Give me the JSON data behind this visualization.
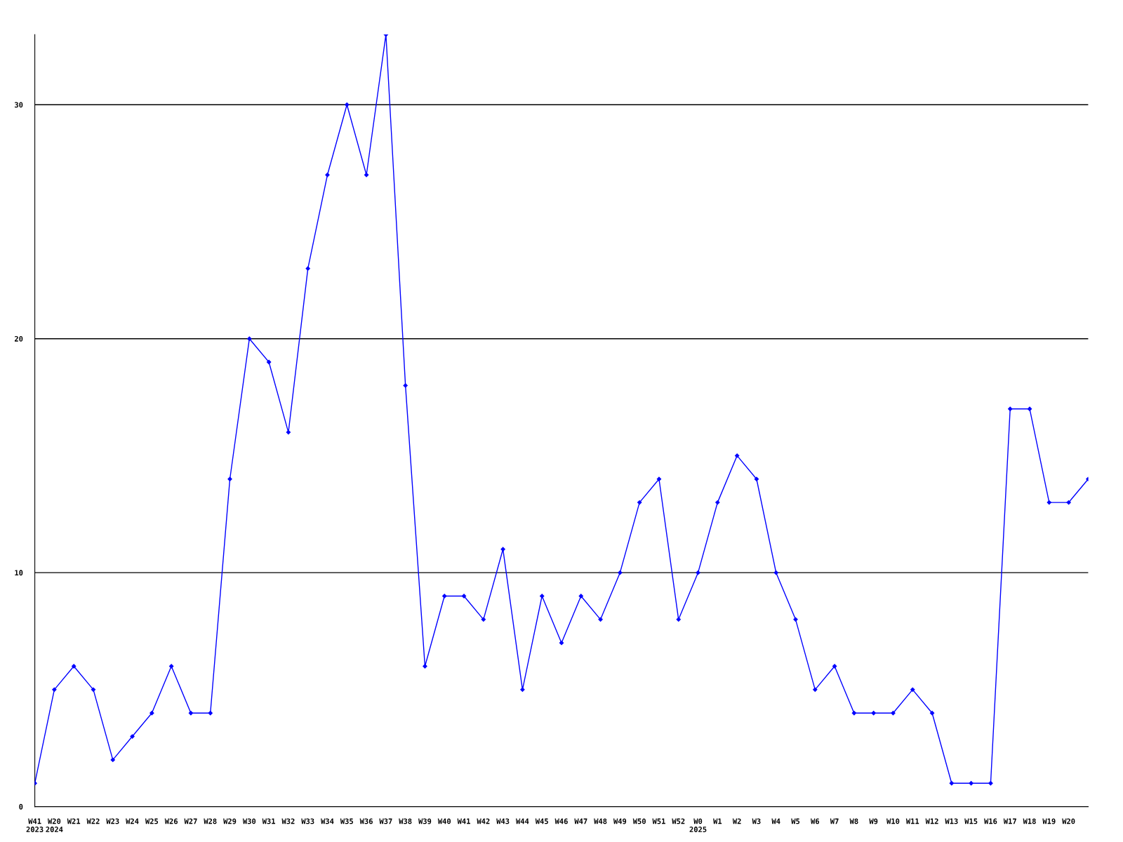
{
  "chart_data": {
    "type": "line",
    "categories": [
      "W41\n2023",
      "W20\n2024",
      "W21",
      "W22",
      "W23",
      "W24",
      "W25",
      "W26",
      "W27",
      "W28",
      "W29",
      "W30",
      "W31",
      "W32",
      "W33",
      "W34",
      "W35",
      "W36",
      "W37",
      "W38",
      "W39",
      "W40",
      "W41",
      "W42",
      "W43",
      "W44",
      "W45",
      "W46",
      "W47",
      "W48",
      "W49",
      "W50",
      "W51",
      "W52",
      "W0\n2025",
      "W1",
      "W2",
      "W3",
      "W4",
      "W5",
      "W6",
      "W7",
      "W8",
      "W9",
      "W10",
      "W11",
      "W12",
      "W13",
      "W15",
      "W16",
      "W17",
      "W18",
      "W19",
      "W20",
      null
    ],
    "series": [
      {
        "color": "#0000ff",
        "values": [
          1,
          5,
          6,
          5,
          2,
          3,
          4,
          6,
          4,
          4,
          14,
          20,
          19,
          16,
          23,
          27,
          30,
          27,
          33,
          18,
          6,
          9,
          9,
          8,
          11,
          5,
          9,
          7,
          9,
          8,
          10,
          13,
          14,
          8,
          10,
          13,
          15,
          14,
          10,
          8,
          5,
          6,
          4,
          4,
          4,
          5,
          4,
          1,
          1,
          1,
          17,
          17,
          13,
          13,
          14
        ]
      }
    ],
    "ylim": [
      0,
      33
    ],
    "yticks": [
      0,
      10,
      20,
      30
    ],
    "grid": "y",
    "marker": "diamond",
    "line_style": "solid"
  }
}
